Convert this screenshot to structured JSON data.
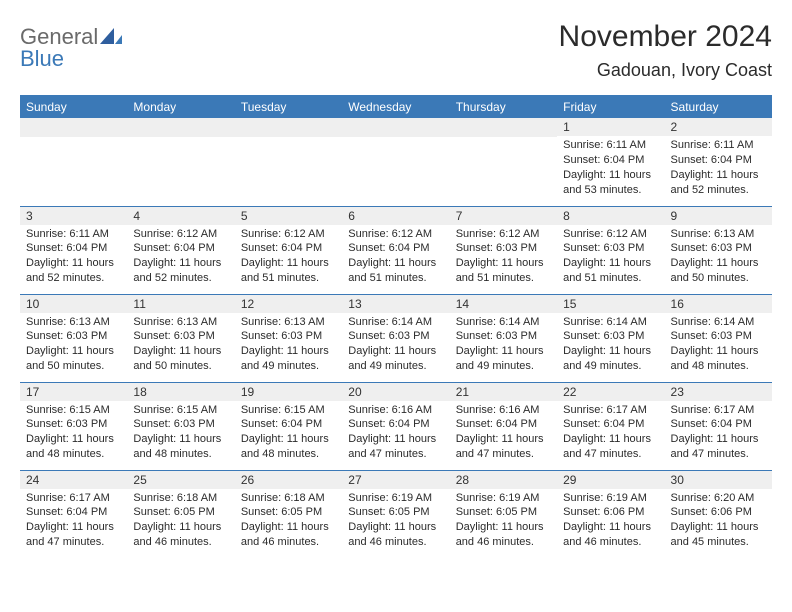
{
  "brand": {
    "general": "General",
    "blue": "Blue"
  },
  "title": "November 2024",
  "location": "Gadouan, Ivory Coast",
  "colors": {
    "header_bar": "#3b79b7",
    "row_header_bg": "#efefef",
    "border": "#3b79b7",
    "text": "#2b2b2b",
    "logo_gray": "#6a6a6a",
    "logo_blue": "#3b79b7",
    "white": "#ffffff"
  },
  "weekdays": [
    "Sunday",
    "Monday",
    "Tuesday",
    "Wednesday",
    "Thursday",
    "Friday",
    "Saturday"
  ],
  "weeks": [
    [
      null,
      null,
      null,
      null,
      null,
      {
        "n": "1",
        "sunrise": "Sunrise: 6:11 AM",
        "sunset": "Sunset: 6:04 PM",
        "daylight": "Daylight: 11 hours and 53 minutes."
      },
      {
        "n": "2",
        "sunrise": "Sunrise: 6:11 AM",
        "sunset": "Sunset: 6:04 PM",
        "daylight": "Daylight: 11 hours and 52 minutes."
      }
    ],
    [
      {
        "n": "3",
        "sunrise": "Sunrise: 6:11 AM",
        "sunset": "Sunset: 6:04 PM",
        "daylight": "Daylight: 11 hours and 52 minutes."
      },
      {
        "n": "4",
        "sunrise": "Sunrise: 6:12 AM",
        "sunset": "Sunset: 6:04 PM",
        "daylight": "Daylight: 11 hours and 52 minutes."
      },
      {
        "n": "5",
        "sunrise": "Sunrise: 6:12 AM",
        "sunset": "Sunset: 6:04 PM",
        "daylight": "Daylight: 11 hours and 51 minutes."
      },
      {
        "n": "6",
        "sunrise": "Sunrise: 6:12 AM",
        "sunset": "Sunset: 6:04 PM",
        "daylight": "Daylight: 11 hours and 51 minutes."
      },
      {
        "n": "7",
        "sunrise": "Sunrise: 6:12 AM",
        "sunset": "Sunset: 6:03 PM",
        "daylight": "Daylight: 11 hours and 51 minutes."
      },
      {
        "n": "8",
        "sunrise": "Sunrise: 6:12 AM",
        "sunset": "Sunset: 6:03 PM",
        "daylight": "Daylight: 11 hours and 51 minutes."
      },
      {
        "n": "9",
        "sunrise": "Sunrise: 6:13 AM",
        "sunset": "Sunset: 6:03 PM",
        "daylight": "Daylight: 11 hours and 50 minutes."
      }
    ],
    [
      {
        "n": "10",
        "sunrise": "Sunrise: 6:13 AM",
        "sunset": "Sunset: 6:03 PM",
        "daylight": "Daylight: 11 hours and 50 minutes."
      },
      {
        "n": "11",
        "sunrise": "Sunrise: 6:13 AM",
        "sunset": "Sunset: 6:03 PM",
        "daylight": "Daylight: 11 hours and 50 minutes."
      },
      {
        "n": "12",
        "sunrise": "Sunrise: 6:13 AM",
        "sunset": "Sunset: 6:03 PM",
        "daylight": "Daylight: 11 hours and 49 minutes."
      },
      {
        "n": "13",
        "sunrise": "Sunrise: 6:14 AM",
        "sunset": "Sunset: 6:03 PM",
        "daylight": "Daylight: 11 hours and 49 minutes."
      },
      {
        "n": "14",
        "sunrise": "Sunrise: 6:14 AM",
        "sunset": "Sunset: 6:03 PM",
        "daylight": "Daylight: 11 hours and 49 minutes."
      },
      {
        "n": "15",
        "sunrise": "Sunrise: 6:14 AM",
        "sunset": "Sunset: 6:03 PM",
        "daylight": "Daylight: 11 hours and 49 minutes."
      },
      {
        "n": "16",
        "sunrise": "Sunrise: 6:14 AM",
        "sunset": "Sunset: 6:03 PM",
        "daylight": "Daylight: 11 hours and 48 minutes."
      }
    ],
    [
      {
        "n": "17",
        "sunrise": "Sunrise: 6:15 AM",
        "sunset": "Sunset: 6:03 PM",
        "daylight": "Daylight: 11 hours and 48 minutes."
      },
      {
        "n": "18",
        "sunrise": "Sunrise: 6:15 AM",
        "sunset": "Sunset: 6:03 PM",
        "daylight": "Daylight: 11 hours and 48 minutes."
      },
      {
        "n": "19",
        "sunrise": "Sunrise: 6:15 AM",
        "sunset": "Sunset: 6:04 PM",
        "daylight": "Daylight: 11 hours and 48 minutes."
      },
      {
        "n": "20",
        "sunrise": "Sunrise: 6:16 AM",
        "sunset": "Sunset: 6:04 PM",
        "daylight": "Daylight: 11 hours and 47 minutes."
      },
      {
        "n": "21",
        "sunrise": "Sunrise: 6:16 AM",
        "sunset": "Sunset: 6:04 PM",
        "daylight": "Daylight: 11 hours and 47 minutes."
      },
      {
        "n": "22",
        "sunrise": "Sunrise: 6:17 AM",
        "sunset": "Sunset: 6:04 PM",
        "daylight": "Daylight: 11 hours and 47 minutes."
      },
      {
        "n": "23",
        "sunrise": "Sunrise: 6:17 AM",
        "sunset": "Sunset: 6:04 PM",
        "daylight": "Daylight: 11 hours and 47 minutes."
      }
    ],
    [
      {
        "n": "24",
        "sunrise": "Sunrise: 6:17 AM",
        "sunset": "Sunset: 6:04 PM",
        "daylight": "Daylight: 11 hours and 47 minutes."
      },
      {
        "n": "25",
        "sunrise": "Sunrise: 6:18 AM",
        "sunset": "Sunset: 6:05 PM",
        "daylight": "Daylight: 11 hours and 46 minutes."
      },
      {
        "n": "26",
        "sunrise": "Sunrise: 6:18 AM",
        "sunset": "Sunset: 6:05 PM",
        "daylight": "Daylight: 11 hours and 46 minutes."
      },
      {
        "n": "27",
        "sunrise": "Sunrise: 6:19 AM",
        "sunset": "Sunset: 6:05 PM",
        "daylight": "Daylight: 11 hours and 46 minutes."
      },
      {
        "n": "28",
        "sunrise": "Sunrise: 6:19 AM",
        "sunset": "Sunset: 6:05 PM",
        "daylight": "Daylight: 11 hours and 46 minutes."
      },
      {
        "n": "29",
        "sunrise": "Sunrise: 6:19 AM",
        "sunset": "Sunset: 6:06 PM",
        "daylight": "Daylight: 11 hours and 46 minutes."
      },
      {
        "n": "30",
        "sunrise": "Sunrise: 6:20 AM",
        "sunset": "Sunset: 6:06 PM",
        "daylight": "Daylight: 11 hours and 45 minutes."
      }
    ]
  ]
}
